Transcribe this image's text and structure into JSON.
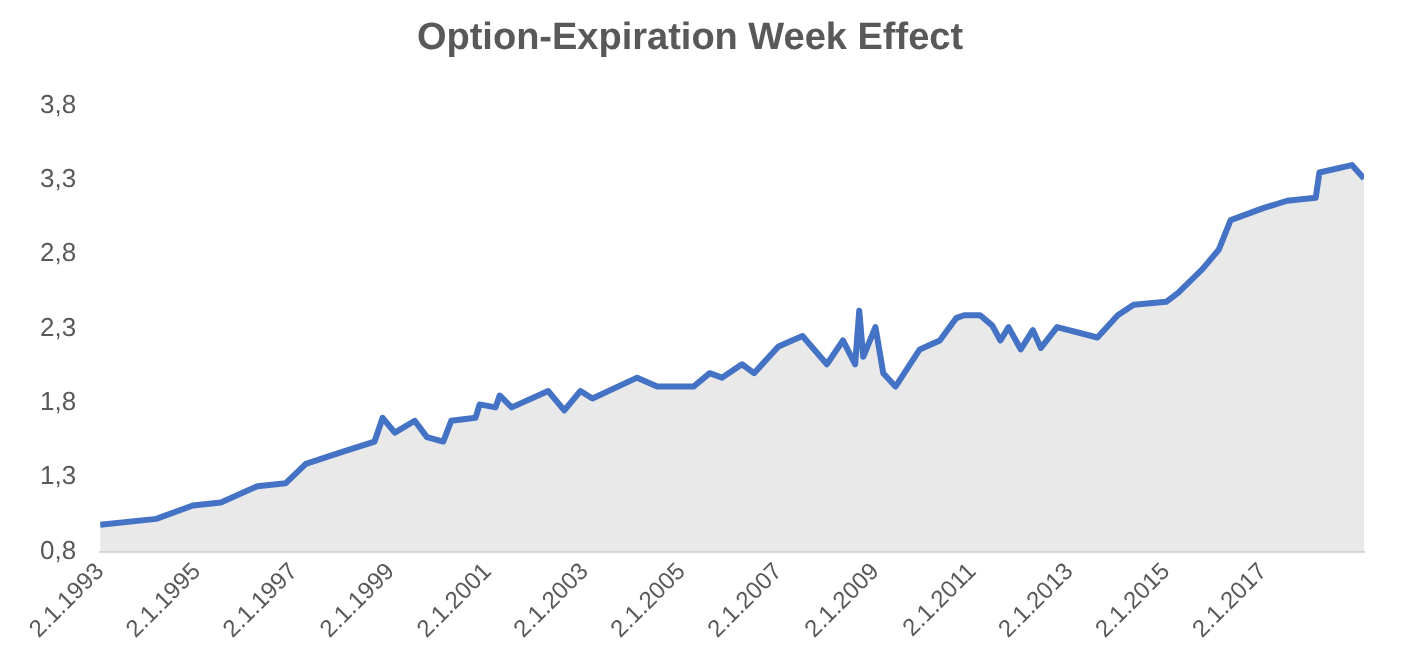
{
  "chart_data": {
    "type": "area",
    "title": "Option-Expiration Week Effect",
    "x": [
      "1993-01-02",
      "1994-03",
      "1994-12",
      "1995-07",
      "1996-04",
      "1996-11",
      "1997-04",
      "1998-01",
      "1998-09",
      "1998-11",
      "1999-02",
      "1999-07",
      "1999-10",
      "2000-02",
      "2000-04",
      "2000-10",
      "2000-11",
      "2001-03",
      "2001-04",
      "2001-07",
      "2002-04",
      "2002-08",
      "2002-12",
      "2003-03",
      "2004-02",
      "2004-07",
      "2005-04",
      "2005-08",
      "2005-11",
      "2006-04",
      "2006-07",
      "2007-01",
      "2007-07",
      "2008-01",
      "2008-05",
      "2008-08",
      "2008-09",
      "2008-10",
      "2009-01",
      "2009-03",
      "2009-06",
      "2009-12",
      "2010-05",
      "2010-09",
      "2010-11",
      "2011-03",
      "2011-06",
      "2011-08",
      "2011-10",
      "2012-01",
      "2012-04",
      "2012-06",
      "2012-10",
      "2013-08",
      "2014-01",
      "2014-05",
      "2015-01",
      "2015-04",
      "2015-10",
      "2016-02",
      "2016-05",
      "2017-01",
      "2017-07",
      "2018-02",
      "2018-03",
      "2018-11",
      "2019-01-31"
    ],
    "series": [
      {
        "color": "#4472c4",
        "values": [
          0.98,
          1.02,
          1.11,
          1.13,
          1.24,
          1.26,
          1.39,
          1.47,
          1.54,
          1.7,
          1.6,
          1.68,
          1.57,
          1.54,
          1.68,
          1.7,
          1.79,
          1.77,
          1.85,
          1.77,
          1.88,
          1.75,
          1.88,
          1.83,
          1.97,
          1.91,
          1.91,
          2.0,
          1.97,
          2.06,
          2.0,
          2.18,
          2.25,
          2.06,
          2.22,
          2.06,
          2.42,
          2.11,
          2.31,
          2.0,
          1.91,
          2.16,
          2.22,
          2.37,
          2.39,
          2.39,
          2.32,
          2.22,
          2.31,
          2.16,
          2.29,
          2.17,
          2.31,
          2.24,
          2.39,
          2.46,
          2.48,
          2.54,
          2.7,
          2.83,
          3.03,
          3.11,
          3.16,
          3.18,
          3.35,
          3.4,
          3.31
        ]
      }
    ],
    "xlim": [
      "1993-01-02",
      "2019-01-31"
    ],
    "xticks": [
      {
        "value": "1993-01-02",
        "label": "2.1.1993"
      },
      {
        "value": "1995-01-02",
        "label": "2.1.1995"
      },
      {
        "value": "1997-01-02",
        "label": "2.1.1997"
      },
      {
        "value": "1999-01-02",
        "label": "2.1.1999"
      },
      {
        "value": "2001-01-02",
        "label": "2.1.2001"
      },
      {
        "value": "2003-01-02",
        "label": "2.1.2003"
      },
      {
        "value": "2005-01-02",
        "label": "2.1.2005"
      },
      {
        "value": "2007-01-02",
        "label": "2.1.2007"
      },
      {
        "value": "2009-01-02",
        "label": "2.1.2009"
      },
      {
        "value": "2011-01-02",
        "label": "2.1.2011"
      },
      {
        "value": "2013-01-02",
        "label": "2.1.2013"
      },
      {
        "value": "2015-01-02",
        "label": "2.1.2015"
      },
      {
        "value": "2017-01-02",
        "label": "2.1.2017"
      }
    ],
    "ylim": [
      0.8,
      3.8
    ],
    "yticks": [
      {
        "value": 0.8,
        "label": "0,8"
      },
      {
        "value": 1.3,
        "label": "1,3"
      },
      {
        "value": 1.8,
        "label": "1,8"
      },
      {
        "value": 2.3,
        "label": "2,3"
      },
      {
        "value": 2.8,
        "label": "2,8"
      },
      {
        "value": 3.3,
        "label": "3,3"
      },
      {
        "value": 3.8,
        "label": "3,8"
      }
    ],
    "grid": false,
    "legend": false,
    "marker": "none",
    "line_style": "solid"
  }
}
